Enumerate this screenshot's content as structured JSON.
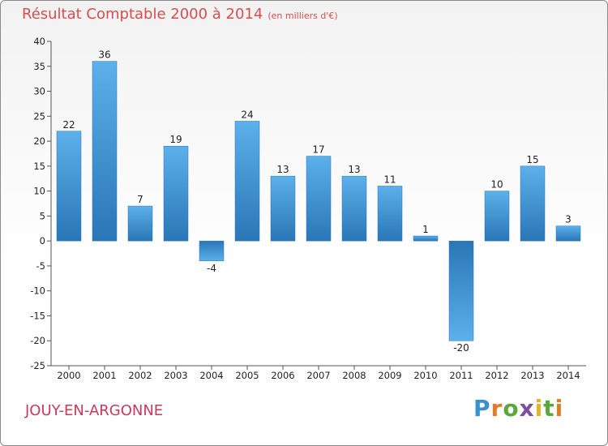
{
  "title": "Résultat Comptable 2000 à 2014",
  "subtitle": "(en milliers d'€)",
  "commune": "JOUY-EN-ARGONNE",
  "brand": "Proxiti",
  "colors": {
    "title": "#d64e4e",
    "commune": "#c63b5b",
    "bar_light": "#5aaeea",
    "bar_dark": "#2a78b8"
  },
  "chart_data": {
    "type": "bar",
    "title": "Résultat Comptable 2000 à 2014",
    "ylabel": "en milliers d'€",
    "xlabel": "",
    "categories": [
      "2000",
      "2001",
      "2002",
      "2003",
      "2004",
      "2005",
      "2006",
      "2007",
      "2008",
      "2009",
      "2010",
      "2011",
      "2012",
      "2013",
      "2014"
    ],
    "values": [
      22,
      36,
      7,
      19,
      -4,
      24,
      13,
      17,
      13,
      11,
      1,
      -20,
      10,
      15,
      3
    ],
    "ylim": [
      -25,
      40
    ],
    "yticks": [
      40,
      35,
      30,
      25,
      20,
      15,
      10,
      5,
      0,
      -5,
      -10,
      -15,
      -20,
      -25
    ],
    "grid": false
  }
}
